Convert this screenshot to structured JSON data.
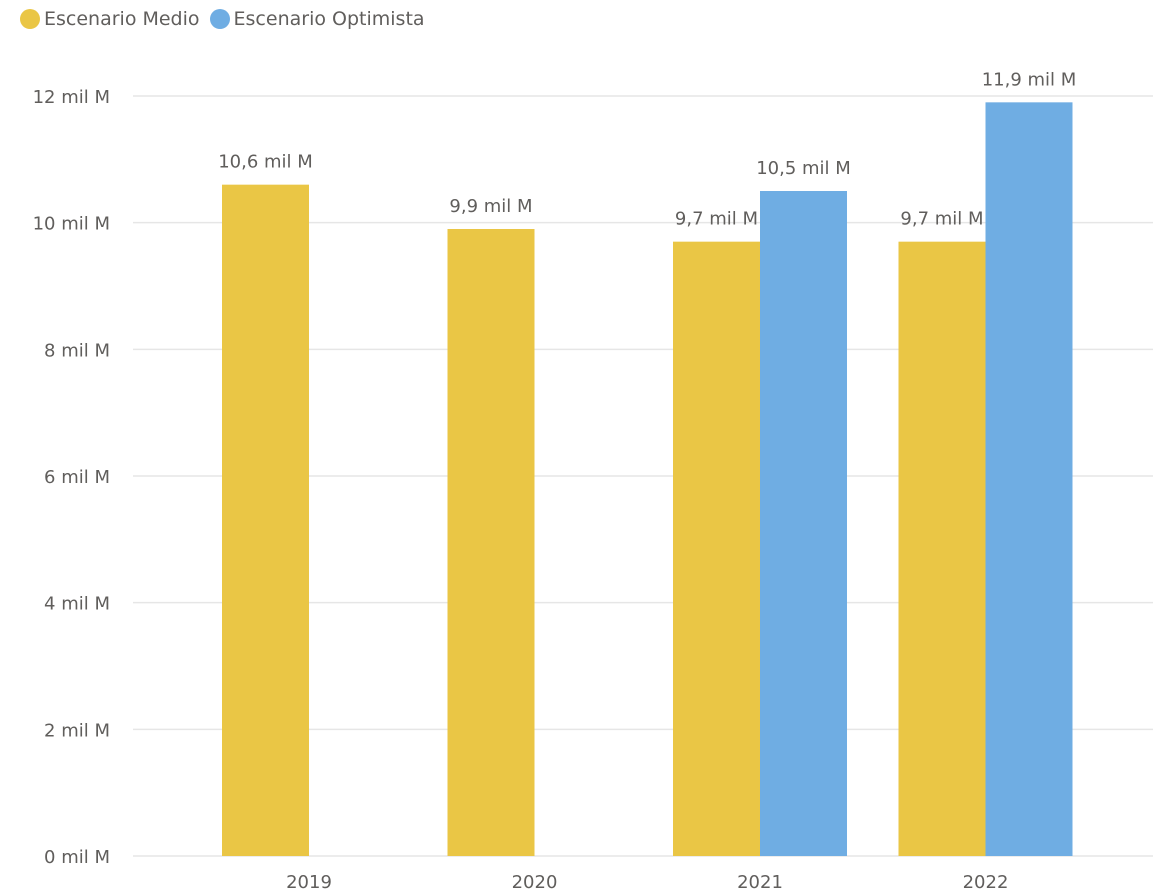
{
  "chart_data": {
    "type": "bar",
    "categories": [
      "2019",
      "2020",
      "2021",
      "2022"
    ],
    "series": [
      {
        "name": "Escenario Medio",
        "color": "#eac645",
        "values": [
          10.6,
          9.9,
          9.7,
          9.7
        ],
        "labels": [
          "10,6 mil M",
          "9,9 mil M",
          "9,7 mil M",
          "9,7 mil M"
        ]
      },
      {
        "name": "Escenario Optimista",
        "color": "#6fade3",
        "values": [
          null,
          null,
          10.5,
          11.9
        ],
        "labels": [
          "",
          "",
          "10,5 mil M",
          "11,9 mil M"
        ]
      }
    ],
    "y_ticks": [
      {
        "value": 0,
        "label": "0 mil M"
      },
      {
        "value": 2,
        "label": "2 mil M"
      },
      {
        "value": 4,
        "label": "4 mil M"
      },
      {
        "value": 6,
        "label": "6 mil M"
      },
      {
        "value": 8,
        "label": "8 mil M"
      },
      {
        "value": 10,
        "label": "10 mil M"
      },
      {
        "value": 12,
        "label": "12 mil M"
      }
    ],
    "ylim": [
      0,
      12
    ],
    "grid": true,
    "legend": "top-left"
  }
}
